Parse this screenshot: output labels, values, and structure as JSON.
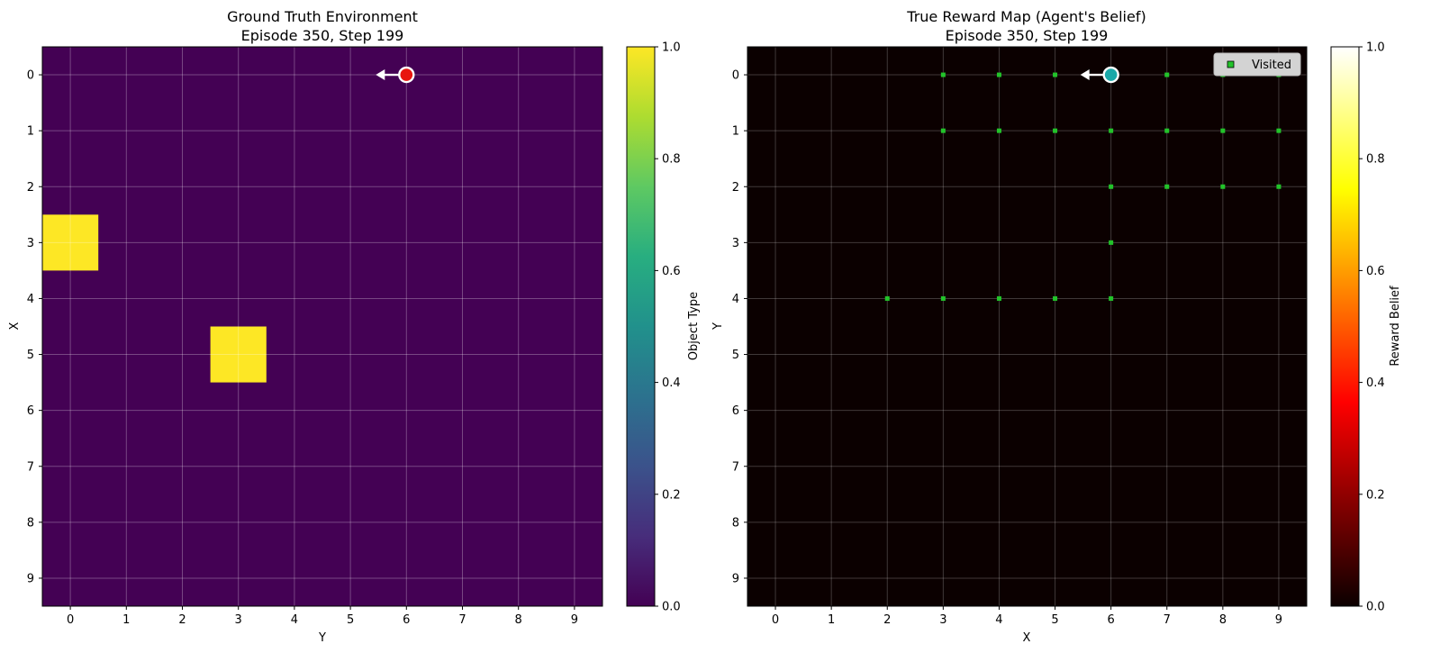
{
  "chart_data": [
    {
      "type": "heatmap",
      "title": "Ground Truth Environment\nEpisode 350, Step 199",
      "xlabel": "Y",
      "ylabel": "X",
      "x_ticks": [
        "0",
        "1",
        "2",
        "3",
        "4",
        "5",
        "6",
        "7",
        "8",
        "9"
      ],
      "y_ticks": [
        "0",
        "1",
        "2",
        "3",
        "4",
        "5",
        "6",
        "7",
        "8",
        "9"
      ],
      "grid": true,
      "colormap": "viridis",
      "colorbar": {
        "label": "Object Type",
        "range": [
          0,
          1
        ],
        "ticks": [
          "0.0",
          "0.2",
          "0.4",
          "0.6",
          "0.8",
          "1.0"
        ]
      },
      "objects": [
        {
          "row": 3,
          "col": 0,
          "value": 1.0
        },
        {
          "row": 5,
          "col": 3,
          "value": 1.0
        }
      ],
      "agent": {
        "row": 0,
        "col": 6,
        "direction": "left",
        "color": "#e8160f"
      }
    },
    {
      "type": "heatmap",
      "title": "True Reward Map (Agent's Belief)\nEpisode 350, Step 199",
      "xlabel": "X",
      "ylabel": "Y",
      "x_ticks": [
        "0",
        "1",
        "2",
        "3",
        "4",
        "5",
        "6",
        "7",
        "8",
        "9"
      ],
      "y_ticks": [
        "0",
        "1",
        "2",
        "3",
        "4",
        "5",
        "6",
        "7",
        "8",
        "9"
      ],
      "grid": true,
      "colormap": "hot",
      "colorbar": {
        "label": "Reward Belief",
        "range": [
          0,
          1
        ],
        "ticks": [
          "0.0",
          "0.2",
          "0.4",
          "0.6",
          "0.8",
          "1.0"
        ]
      },
      "legend": {
        "label": "Visited",
        "placement": "top-right"
      },
      "visited": [
        [
          3,
          0
        ],
        [
          4,
          0
        ],
        [
          5,
          0
        ],
        [
          7,
          0
        ],
        [
          8,
          0
        ],
        [
          9,
          0
        ],
        [
          3,
          1
        ],
        [
          4,
          1
        ],
        [
          5,
          1
        ],
        [
          6,
          1
        ],
        [
          7,
          1
        ],
        [
          8,
          1
        ],
        [
          9,
          1
        ],
        [
          6,
          2
        ],
        [
          7,
          2
        ],
        [
          8,
          2
        ],
        [
          9,
          2
        ],
        [
          6,
          3
        ],
        [
          2,
          4
        ],
        [
          3,
          4
        ],
        [
          4,
          4
        ],
        [
          5,
          4
        ],
        [
          6,
          4
        ]
      ],
      "agent": {
        "x": 6,
        "y": 0,
        "direction": "left",
        "color": "#1aa8a8"
      }
    }
  ]
}
